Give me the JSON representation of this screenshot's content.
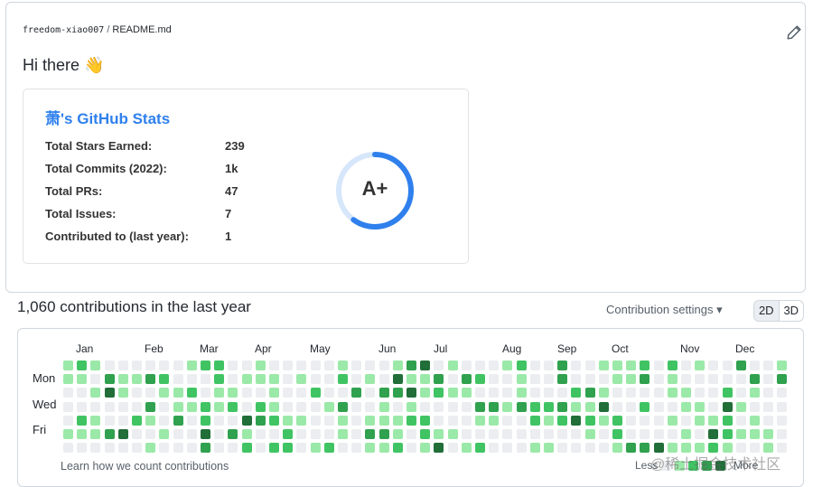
{
  "readme": {
    "repo": "freedom-xiao007",
    "separator": "/",
    "file": "README.md",
    "greeting": "Hi there 👋"
  },
  "stats_card": {
    "title": "萧's GitHub Stats",
    "rows": [
      {
        "label": "Total Stars Earned:",
        "value": "239"
      },
      {
        "label": "Total Commits (2022):",
        "value": "1k"
      },
      {
        "label": "Total PRs:",
        "value": "47"
      },
      {
        "label": "Total Issues:",
        "value": "7"
      },
      {
        "label": "Contributed to (last year):",
        "value": "1"
      }
    ],
    "rank": "A+",
    "rank_progress": 0.6,
    "colors": {
      "title": "#2f80ed",
      "ring": "#2f80ed"
    }
  },
  "contributions": {
    "title": "1,060 contributions in the last year",
    "settings_label": "Contribution settings ▾",
    "toggle": [
      "2D",
      "3D"
    ],
    "months": [
      "Jan",
      "Feb",
      "Mar",
      "Apr",
      "May",
      "Jun",
      "Jul",
      "Aug",
      "Sep",
      "Oct",
      "Nov",
      "Dec"
    ],
    "days": [
      "Mon",
      "Wed",
      "Fri"
    ],
    "learn_link": "Learn how we count contributions",
    "less": "Less",
    "more": "More",
    "levels": [
      "#ebedf0",
      "#9be9a8",
      "#40c463",
      "#30a14e",
      "#216e39"
    ]
  },
  "watermark": "@稀土掘金技术社区"
}
